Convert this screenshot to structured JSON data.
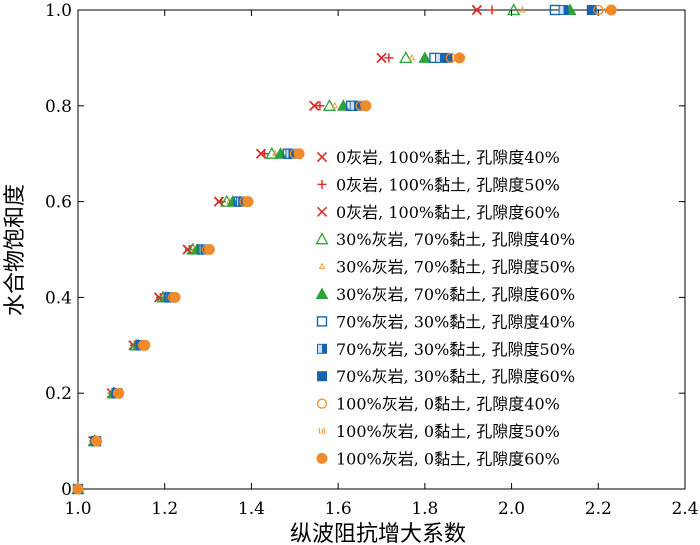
{
  "chart_data": {
    "type": "scatter",
    "title": "",
    "xlabel": "纵波阻抗增大系数",
    "ylabel": "水合物饱和度",
    "xlim": [
      1.0,
      2.4
    ],
    "ylim": [
      0,
      1.0
    ],
    "xticks": [
      "1.0",
      "1.2",
      "1.4",
      "1.6",
      "1.8",
      "2.0",
      "2.2",
      "2.4"
    ],
    "yticks": [
      "0",
      "0.2",
      "0.4",
      "0.6",
      "0.8",
      "1.0"
    ],
    "grid": false,
    "legend_position": "right",
    "y": [
      0,
      0.1,
      0.2,
      0.3,
      0.4,
      0.5,
      0.6,
      0.7,
      0.8,
      0.9,
      1.0
    ],
    "series": [
      {
        "name": "0灰岩, 100%黏土, 孔隙度40%",
        "marker": "x",
        "color": "#d9302a",
        "x": [
          1.0,
          1.035,
          1.078,
          1.128,
          1.187,
          1.253,
          1.325,
          1.422,
          1.545,
          1.7,
          1.92
        ]
      },
      {
        "name": "0灰岩, 100%黏土, 孔隙度50%",
        "marker": "plus",
        "color": "#d9302a",
        "x": [
          1.0,
          1.036,
          1.079,
          1.13,
          1.19,
          1.257,
          1.331,
          1.43,
          1.558,
          1.717,
          1.955
        ]
      },
      {
        "name": "0灰岩, 100%黏土, 孔隙度60%",
        "marker": "x",
        "color": "#d9302a",
        "x": [
          1.0,
          1.035,
          1.078,
          1.128,
          1.187,
          1.253,
          1.325,
          1.422,
          1.545,
          1.7,
          1.92
        ]
      },
      {
        "name": "30%灰岩, 70%黏土, 孔隙度40%",
        "marker": "triangle-open",
        "color": "#2aa33a",
        "x": [
          1.0,
          1.038,
          1.082,
          1.134,
          1.196,
          1.265,
          1.343,
          1.447,
          1.58,
          1.756,
          2.005
        ]
      },
      {
        "name": "30%灰岩, 70%黏土, 孔隙度50%",
        "marker": "triangle-small",
        "color": "#f0a33a",
        "x": [
          1.0,
          1.038,
          1.083,
          1.136,
          1.199,
          1.269,
          1.349,
          1.455,
          1.592,
          1.77,
          2.025
        ]
      },
      {
        "name": "30%灰岩, 70%黏土, 孔隙度60%",
        "marker": "triangle-filled",
        "color": "#2aa33a",
        "x": [
          1.0,
          1.039,
          1.085,
          1.139,
          1.203,
          1.275,
          1.357,
          1.467,
          1.612,
          1.8,
          2.135
        ]
      },
      {
        "name": "70%灰岩, 30%黏土, 孔隙度40%",
        "marker": "square-open",
        "color": "#1565b0",
        "x": [
          1.0,
          1.041,
          1.089,
          1.145,
          1.211,
          1.286,
          1.371,
          1.484,
          1.63,
          1.822,
          2.1
        ]
      },
      {
        "name": "70%灰岩, 30%黏土, 孔隙度50%",
        "marker": "square-half",
        "color": "#1565b0",
        "x": [
          1.0,
          1.041,
          1.09,
          1.147,
          1.214,
          1.29,
          1.376,
          1.49,
          1.638,
          1.835,
          2.12
        ]
      },
      {
        "name": "70%灰岩, 30%黏土, 孔隙度60%",
        "marker": "square-filled",
        "color": "#1565b0",
        "x": [
          1.0,
          1.042,
          1.091,
          1.149,
          1.217,
          1.294,
          1.381,
          1.497,
          1.648,
          1.852,
          2.185
        ]
      },
      {
        "name": "100%灰岩, 0黏土, 孔隙度40%",
        "marker": "circle-open",
        "color": "#f08a2a",
        "x": [
          1.0,
          1.042,
          1.092,
          1.15,
          1.219,
          1.297,
          1.384,
          1.5,
          1.652,
          1.86,
          2.2
        ]
      },
      {
        "name": "100%灰岩, 0黏土, 孔隙度50%",
        "marker": "tick",
        "color": "#f08a2a",
        "x": [
          1.0,
          1.043,
          1.093,
          1.152,
          1.221,
          1.3,
          1.388,
          1.505,
          1.658,
          1.87,
          2.215
        ]
      },
      {
        "name": "100%灰岩, 0黏土, 孔隙度60%",
        "marker": "circle-filled",
        "color": "#f08a2a",
        "x": [
          1.0,
          1.043,
          1.094,
          1.154,
          1.224,
          1.303,
          1.392,
          1.51,
          1.664,
          1.88,
          2.23
        ]
      }
    ]
  }
}
